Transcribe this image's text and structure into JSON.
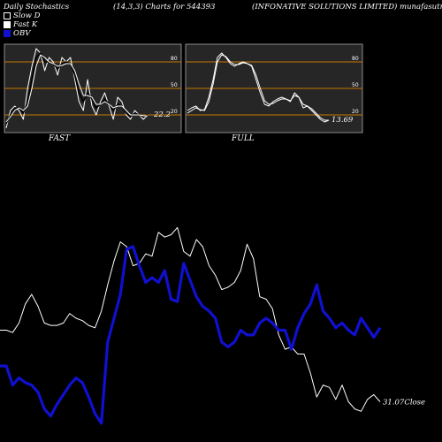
{
  "header": {
    "title": "Daily Stochastics",
    "params": "(14,3,3) Charts for 544393",
    "company": "(INFONATIVE SOLUTIONS LIMITED) munafasutra.in"
  },
  "legend": [
    {
      "label": "Slow  D",
      "color": "#000000"
    },
    {
      "label": "Fast K",
      "color": "#ffffff"
    },
    {
      "label": "OBV",
      "color": "#1010d0"
    }
  ],
  "chart_data": [
    {
      "type": "line",
      "label": "FAST",
      "ylim": [
        0,
        100
      ],
      "yticks": [
        20,
        50,
        80
      ],
      "reference_lines": [
        20,
        50,
        80
      ],
      "last_value_label": "22.2",
      "series": [
        {
          "values": [
            5,
            25,
            30,
            25,
            15,
            50,
            75,
            95,
            90,
            70,
            85,
            80,
            65,
            85,
            80,
            85,
            60,
            35,
            25,
            60,
            30,
            20,
            35,
            45,
            30,
            15,
            40,
            35,
            20,
            15,
            25,
            20,
            15,
            20
          ]
        },
        {
          "values": [
            10,
            20,
            28,
            28,
            22,
            35,
            60,
            85,
            90,
            80,
            80,
            78,
            72,
            78,
            80,
            78,
            65,
            45,
            35,
            45,
            38,
            28,
            32,
            38,
            32,
            25,
            32,
            30,
            22,
            18,
            22,
            20,
            18,
            20
          ]
        },
        {
          "values": [
            12,
            18,
            25,
            28,
            25,
            30,
            50,
            75,
            88,
            85,
            80,
            78,
            75,
            76,
            78,
            78,
            70,
            55,
            42,
            42,
            40,
            32,
            32,
            35,
            32,
            28,
            30,
            30,
            25,
            20,
            20,
            20,
            19,
            19
          ]
        }
      ]
    },
    {
      "type": "line",
      "label": "FULL",
      "ylim": [
        0,
        100
      ],
      "yticks": [
        20,
        50,
        80
      ],
      "reference_lines": [
        20,
        50,
        80
      ],
      "last_value_label": "13.69",
      "series": [
        {
          "values": [
            25,
            28,
            30,
            25,
            26,
            40,
            60,
            85,
            90,
            85,
            78,
            75,
            78,
            80,
            78,
            75,
            60,
            45,
            32,
            30,
            35,
            38,
            40,
            38,
            35,
            45,
            40,
            28,
            30,
            25,
            20,
            15,
            12,
            14
          ]
        },
        {
          "values": [
            22,
            25,
            28,
            26,
            25,
            35,
            55,
            80,
            88,
            86,
            80,
            77,
            77,
            79,
            78,
            76,
            65,
            50,
            36,
            32,
            33,
            36,
            38,
            38,
            36,
            42,
            40,
            32,
            30,
            27,
            22,
            17,
            14,
            14
          ]
        }
      ]
    },
    {
      "type": "line",
      "close_label": "31.07Close",
      "series": [
        {
          "name": "Close",
          "values": [
            45,
            45,
            44,
            48,
            56,
            60,
            55,
            48,
            47,
            47,
            48,
            52,
            50,
            49,
            47,
            46,
            53,
            64,
            74,
            82,
            80,
            72,
            73,
            77,
            76,
            86,
            84,
            85,
            88,
            78,
            76,
            83,
            80,
            72,
            68,
            62,
            63,
            65,
            70,
            81,
            75,
            59,
            58,
            54,
            43,
            37,
            38,
            35,
            35,
            27,
            17,
            22,
            21,
            16,
            22,
            15,
            12,
            11,
            16,
            18,
            15
          ]
        },
        {
          "name": "OBV",
          "values": [
            30,
            30,
            22,
            25,
            23,
            22,
            19,
            12,
            9,
            14,
            18,
            22,
            25,
            23,
            17,
            10,
            6,
            40,
            50,
            60,
            79,
            80,
            72,
            65,
            67,
            65,
            70,
            58,
            57,
            73,
            66,
            59,
            55,
            53,
            50,
            40,
            38,
            40,
            45,
            43,
            43,
            48,
            50,
            48,
            45,
            45,
            37,
            46,
            52,
            56,
            64,
            53,
            50,
            46,
            48,
            45,
            43,
            50,
            46,
            42,
            46
          ]
        }
      ]
    }
  ]
}
